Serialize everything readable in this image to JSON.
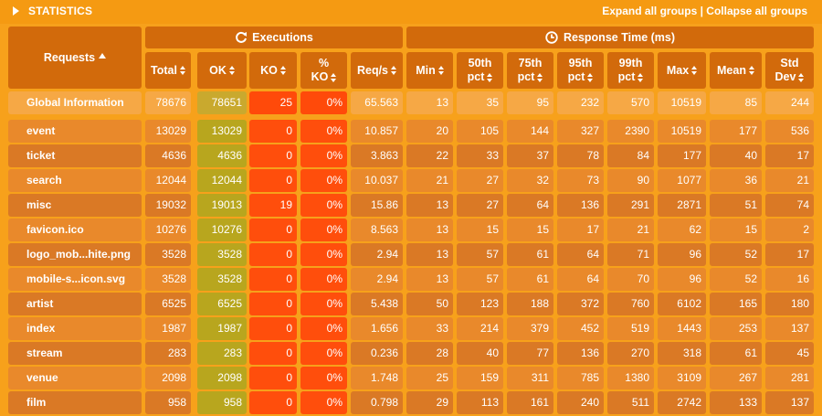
{
  "header": {
    "title": "STATISTICS",
    "expand_all": "Expand all groups",
    "separator": " | ",
    "collapse_all": "Collapse all groups"
  },
  "table": {
    "requests_label": "Requests",
    "executions_label": "Executions",
    "response_time_label": "Response Time (ms)",
    "columns": {
      "total": "Total",
      "ok": "OK",
      "ko": "KO",
      "pct_ko_1": "%",
      "pct_ko_2": "KO",
      "reqs": "Req/s",
      "min": "Min",
      "p50_1": "50th",
      "p50_2": "pct",
      "p75_1": "75th",
      "p75_2": "pct",
      "p95_1": "95th",
      "p95_2": "pct",
      "p99_1": "99th",
      "p99_2": "pct",
      "max": "Max",
      "mean": "Mean",
      "std_1": "Std",
      "std_2": "Dev"
    },
    "global": {
      "name": "Global Information",
      "total": "78676",
      "ok": "78651",
      "ko": "25",
      "pct_ko": "0%",
      "reqs": "65.563",
      "min": "13",
      "p50": "35",
      "p75": "95",
      "p95": "232",
      "p99": "570",
      "max": "10519",
      "mean": "85",
      "std": "244"
    },
    "rows": [
      {
        "name": "event",
        "total": "13029",
        "ok": "13029",
        "ko": "0",
        "pct_ko": "0%",
        "reqs": "10.857",
        "min": "20",
        "p50": "105",
        "p75": "144",
        "p95": "327",
        "p99": "2390",
        "max": "10519",
        "mean": "177",
        "std": "536"
      },
      {
        "name": "ticket",
        "total": "4636",
        "ok": "4636",
        "ko": "0",
        "pct_ko": "0%",
        "reqs": "3.863",
        "min": "22",
        "p50": "33",
        "p75": "37",
        "p95": "78",
        "p99": "84",
        "max": "177",
        "mean": "40",
        "std": "17"
      },
      {
        "name": "search",
        "total": "12044",
        "ok": "12044",
        "ko": "0",
        "pct_ko": "0%",
        "reqs": "10.037",
        "min": "21",
        "p50": "27",
        "p75": "32",
        "p95": "73",
        "p99": "90",
        "max": "1077",
        "mean": "36",
        "std": "21"
      },
      {
        "name": "misc",
        "total": "19032",
        "ok": "19013",
        "ko": "19",
        "pct_ko": "0%",
        "reqs": "15.86",
        "min": "13",
        "p50": "27",
        "p75": "64",
        "p95": "136",
        "p99": "291",
        "max": "2871",
        "mean": "51",
        "std": "74"
      },
      {
        "name": "favicon.ico",
        "total": "10276",
        "ok": "10276",
        "ko": "0",
        "pct_ko": "0%",
        "reqs": "8.563",
        "min": "13",
        "p50": "15",
        "p75": "15",
        "p95": "17",
        "p99": "21",
        "max": "62",
        "mean": "15",
        "std": "2"
      },
      {
        "name": "logo_mob...hite.png",
        "total": "3528",
        "ok": "3528",
        "ko": "0",
        "pct_ko": "0%",
        "reqs": "2.94",
        "min": "13",
        "p50": "57",
        "p75": "61",
        "p95": "64",
        "p99": "71",
        "max": "96",
        "mean": "52",
        "std": "17"
      },
      {
        "name": "mobile-s...icon.svg",
        "total": "3528",
        "ok": "3528",
        "ko": "0",
        "pct_ko": "0%",
        "reqs": "2.94",
        "min": "13",
        "p50": "57",
        "p75": "61",
        "p95": "64",
        "p99": "70",
        "max": "96",
        "mean": "52",
        "std": "16"
      },
      {
        "name": "artist",
        "total": "6525",
        "ok": "6525",
        "ko": "0",
        "pct_ko": "0%",
        "reqs": "5.438",
        "min": "50",
        "p50": "123",
        "p75": "188",
        "p95": "372",
        "p99": "760",
        "max": "6102",
        "mean": "165",
        "std": "180"
      },
      {
        "name": "index",
        "total": "1987",
        "ok": "1987",
        "ko": "0",
        "pct_ko": "0%",
        "reqs": "1.656",
        "min": "33",
        "p50": "214",
        "p75": "379",
        "p95": "452",
        "p99": "519",
        "max": "1443",
        "mean": "253",
        "std": "137"
      },
      {
        "name": "stream",
        "total": "283",
        "ok": "283",
        "ko": "0",
        "pct_ko": "0%",
        "reqs": "0.236",
        "min": "28",
        "p50": "40",
        "p75": "77",
        "p95": "136",
        "p99": "270",
        "max": "318",
        "mean": "61",
        "std": "45"
      },
      {
        "name": "venue",
        "total": "2098",
        "ok": "2098",
        "ko": "0",
        "pct_ko": "0%",
        "reqs": "1.748",
        "min": "25",
        "p50": "159",
        "p75": "311",
        "p95": "785",
        "p99": "1380",
        "max": "3109",
        "mean": "267",
        "std": "281"
      },
      {
        "name": "film",
        "total": "958",
        "ok": "958",
        "ko": "0",
        "pct_ko": "0%",
        "reqs": "0.798",
        "min": "29",
        "p50": "113",
        "p75": "161",
        "p95": "240",
        "p99": "511",
        "max": "2742",
        "mean": "133",
        "std": "137"
      }
    ]
  },
  "colors": {
    "background": "#F7A11B",
    "header_cell": "#D26A0B",
    "ok_cell": "#B8A61E",
    "ko_cell": "#FF4E0C"
  },
  "icons": {
    "toggle": "triangle-right-icon",
    "sort": "sort-arrows-icon",
    "sort_asc": "sort-asc-icon",
    "executions": "refresh-icon",
    "response_time": "clock-icon"
  }
}
